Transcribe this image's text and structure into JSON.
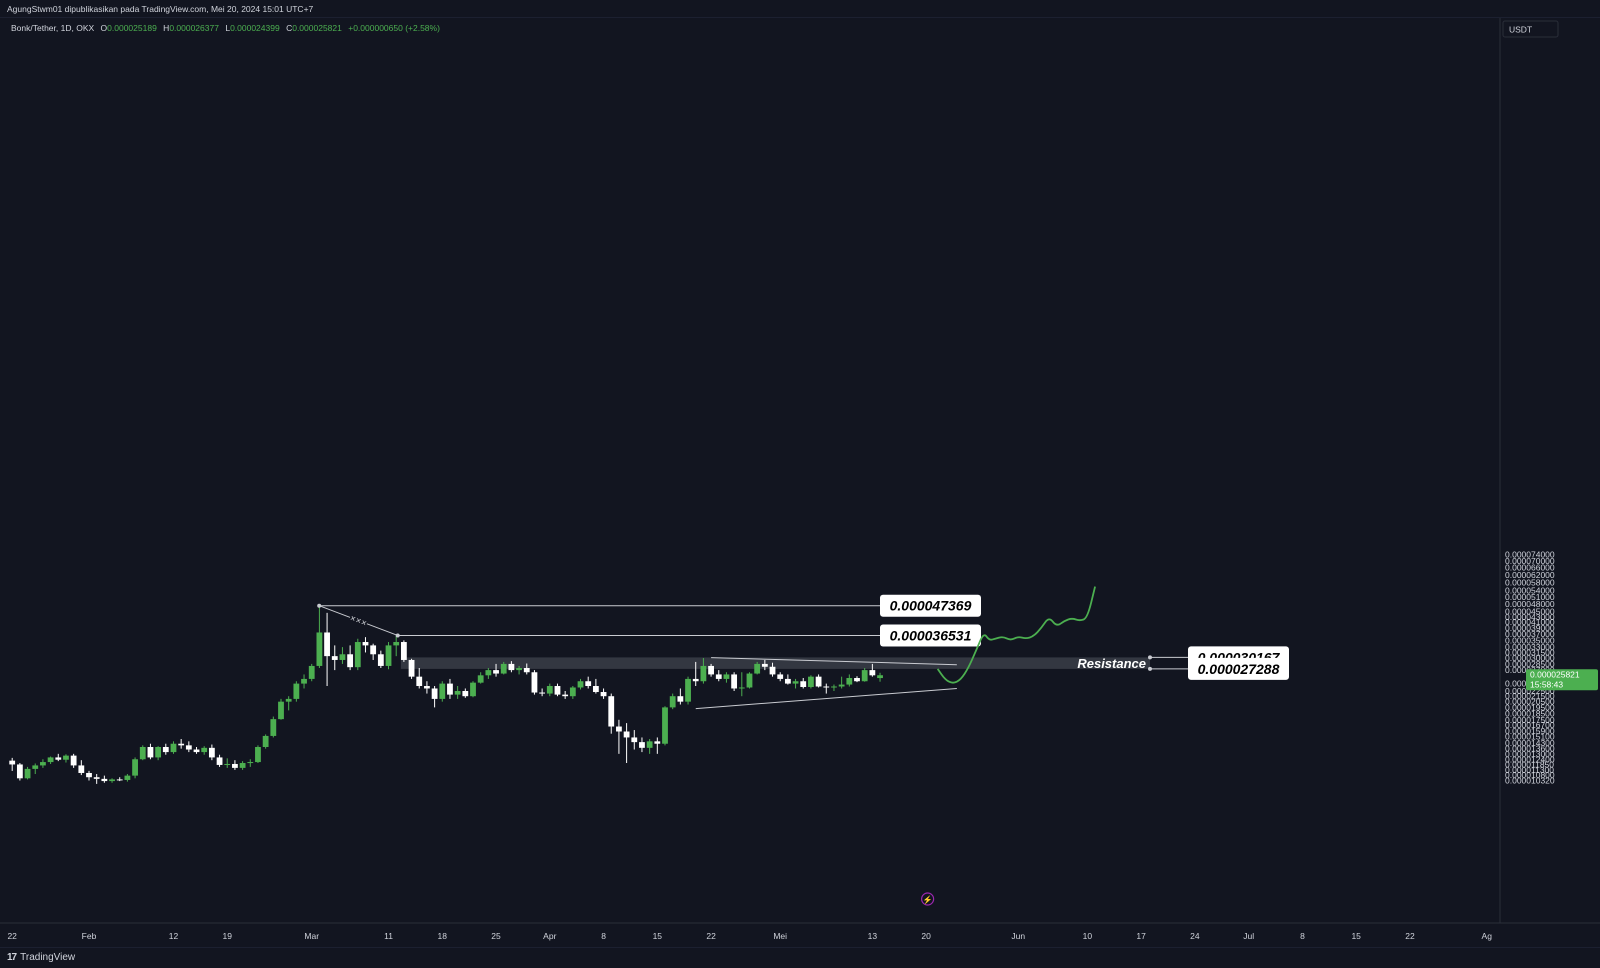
{
  "header": {
    "publisher": "AgungStwm01 dipublikasikan pada TradingView.com, Mei 20, 2024 15:01 UTC+7"
  },
  "legend": {
    "symbol": "Bonk/Tether, 1D, OKX",
    "o_label": "O",
    "o": "0.000025189",
    "h_label": "H",
    "h": "0.000026377",
    "l_label": "L",
    "l": "0.000024399",
    "c_label": "C",
    "c": "0.000025821",
    "change": "+0.000000650 (+2.58%)"
  },
  "price_axis": {
    "currency": "USDT",
    "last_price": "0.000025821",
    "countdown": "15:58:43"
  },
  "footer": {
    "brand": "TradingView"
  },
  "colors": {
    "background": "#121520",
    "up": "#4caf50",
    "down": "#ffffff",
    "zone": "#3a3d48",
    "projection": "#4caf50"
  },
  "annotations": {
    "resistance_label": "Resistance",
    "levels": [
      "0.000047369",
      "0.000036531",
      "0.000030167",
      "0.000027288"
    ]
  },
  "chart_data": {
    "type": "candlestick",
    "scale": "log",
    "ylim": [
      1e-05,
      7.65e-05
    ],
    "y_ticks": [
      "0.000074000",
      "0.000070000",
      "0.000066000",
      "0.000062000",
      "0.000058000",
      "0.000054000",
      "0.000051000",
      "0.000048000",
      "0.000045000",
      "0.000043000",
      "0.000041000",
      "0.000039000",
      "0.000037000",
      "0.000035000",
      "0.000033000",
      "0.000031500",
      "0.000030000",
      "0.000028500",
      "0.000027000",
      "0.000024000",
      "0.000022500",
      "0.000021500",
      "0.000020500",
      "0.000019500",
      "0.000018500",
      "0.000017500",
      "0.000016700",
      "0.000015900",
      "0.000015100",
      "0.000014300",
      "0.000013600",
      "0.000013000",
      "0.000012400",
      "0.000011850",
      "0.000011300",
      "0.000010800",
      "0.000010320"
    ],
    "x_ticks": [
      {
        "label": "22",
        "day": 0
      },
      {
        "label": "Feb",
        "day": 10
      },
      {
        "label": "12",
        "day": 21
      },
      {
        "label": "19",
        "day": 28
      },
      {
        "label": "Mar",
        "day": 39
      },
      {
        "label": "11",
        "day": 49
      },
      {
        "label": "18",
        "day": 56
      },
      {
        "label": "25",
        "day": 63
      },
      {
        "label": "Apr",
        "day": 70
      },
      {
        "label": "8",
        "day": 77
      },
      {
        "label": "15",
        "day": 84
      },
      {
        "label": "22",
        "day": 91
      },
      {
        "label": "Mei",
        "day": 100
      },
      {
        "label": "13",
        "day": 112
      },
      {
        "label": "20",
        "day": 119
      },
      {
        "label": "Jun",
        "day": 131
      },
      {
        "label": "10",
        "day": 140
      },
      {
        "label": "17",
        "day": 147
      },
      {
        "label": "24",
        "day": 154
      },
      {
        "label": "Jul",
        "day": 161
      },
      {
        "label": "8",
        "day": 168
      },
      {
        "label": "15",
        "day": 175
      },
      {
        "label": "22",
        "day": 182
      },
      {
        "label": "Ag",
        "day": 192
      }
    ],
    "start_date": "2024-01-22",
    "candles": [
      [
        1.225e-05,
        1.255e-05,
        1.12e-05,
        1.185e-05
      ],
      [
        1.185e-05,
        1.2e-05,
        1.03e-05,
        1.05e-05
      ],
      [
        1.05e-05,
        1.16e-05,
        1.04e-05,
        1.14e-05
      ],
      [
        1.14e-05,
        1.195e-05,
        1.09e-05,
        1.175e-05
      ],
      [
        1.175e-05,
        1.24e-05,
        1.15e-05,
        1.21e-05
      ],
      [
        1.21e-05,
        1.27e-05,
        1.19e-05,
        1.26e-05
      ],
      [
        1.26e-05,
        1.3e-05,
        1.22e-05,
        1.235e-05
      ],
      [
        1.235e-05,
        1.295e-05,
        1.205e-05,
        1.28e-05
      ],
      [
        1.28e-05,
        1.3e-05,
        1.15e-05,
        1.175e-05
      ],
      [
        1.175e-05,
        1.23e-05,
        1.08e-05,
        1.1e-05
      ],
      [
        1.1e-05,
        1.12e-05,
        1.03e-05,
        1.06e-05
      ],
      [
        1.06e-05,
        1.09e-05,
        1e-05,
        1.045e-05
      ],
      [
        1.045e-05,
        1.075e-05,
        1.01e-05,
        1.025e-05
      ],
      [
        1.025e-05,
        1.05e-05,
        1.01e-05,
        1.04e-05
      ],
      [
        1.04e-05,
        1.06e-05,
        1.025e-05,
        1.035e-05
      ],
      [
        1.035e-05,
        1.09e-05,
        1.02e-05,
        1.075e-05
      ],
      [
        1.075e-05,
        1.26e-05,
        1.05e-05,
        1.24e-05
      ],
      [
        1.24e-05,
        1.4e-05,
        1.23e-05,
        1.38e-05
      ],
      [
        1.38e-05,
        1.42e-05,
        1.24e-05,
        1.26e-05
      ],
      [
        1.26e-05,
        1.39e-05,
        1.23e-05,
        1.38e-05
      ],
      [
        1.38e-05,
        1.42e-05,
        1.29e-05,
        1.32e-05
      ],
      [
        1.32e-05,
        1.45e-05,
        1.3e-05,
        1.42e-05
      ],
      [
        1.42e-05,
        1.48e-05,
        1.36e-05,
        1.4e-05
      ],
      [
        1.4e-05,
        1.45e-05,
        1.32e-05,
        1.35e-05
      ],
      [
        1.35e-05,
        1.38e-05,
        1.3e-05,
        1.32e-05
      ],
      [
        1.32e-05,
        1.39e-05,
        1.29e-05,
        1.37e-05
      ],
      [
        1.37e-05,
        1.41e-05,
        1.23e-05,
        1.26e-05
      ],
      [
        1.26e-05,
        1.29e-05,
        1.16e-05,
        1.18e-05
      ],
      [
        1.18e-05,
        1.25e-05,
        1.15e-05,
        1.19e-05
      ],
      [
        1.19e-05,
        1.23e-05,
        1.13e-05,
        1.15e-05
      ],
      [
        1.15e-05,
        1.22e-05,
        1.13e-05,
        1.2e-05
      ],
      [
        1.2e-05,
        1.24e-05,
        1.16e-05,
        1.21e-05
      ],
      [
        1.21e-05,
        1.4e-05,
        1.2e-05,
        1.38e-05
      ],
      [
        1.38e-05,
        1.54e-05,
        1.36e-05,
        1.52e-05
      ],
      [
        1.52e-05,
        1.8e-05,
        1.5e-05,
        1.76e-05
      ],
      [
        1.76e-05,
        2.1e-05,
        1.75e-05,
        2.05e-05
      ],
      [
        2.05e-05,
        2.15e-05,
        1.9e-05,
        2.1e-05
      ],
      [
        2.1e-05,
        2.45e-05,
        2.05e-05,
        2.4e-05
      ],
      [
        2.4e-05,
        2.6e-05,
        2.3e-05,
        2.5e-05
      ],
      [
        2.5e-05,
        2.85e-05,
        2.45e-05,
        2.8e-05
      ],
      [
        2.8e-05,
        4.736e-05,
        2.75e-05,
        3.75e-05
      ],
      [
        3.75e-05,
        4.45e-05,
        2.35e-05,
        3.05e-05
      ],
      [
        3.05e-05,
        3.35e-05,
        2.7e-05,
        2.95e-05
      ],
      [
        2.95e-05,
        3.3e-05,
        2.85e-05,
        3.1e-05
      ],
      [
        3.1e-05,
        3.35e-05,
        2.7e-05,
        2.77e-05
      ],
      [
        2.77e-05,
        3.55e-05,
        2.7e-05,
        3.45e-05
      ],
      [
        3.45e-05,
        3.6e-05,
        3.15e-05,
        3.35e-05
      ],
      [
        3.35e-05,
        3.4e-05,
        2.95e-05,
        3.1e-05
      ],
      [
        3.1e-05,
        3.2e-05,
        2.75e-05,
        2.8e-05
      ],
      [
        2.8e-05,
        3.45e-05,
        2.72e-05,
        3.35e-05
      ],
      [
        3.35e-05,
        3.653e-05,
        3.05e-05,
        3.45e-05
      ],
      [
        3.45e-05,
        3.5e-05,
        2.9e-05,
        2.95e-05
      ],
      [
        2.95e-05,
        2.98e-05,
        2.5e-05,
        2.55e-05
      ],
      [
        2.55e-05,
        2.75e-05,
        2.3e-05,
        2.35e-05
      ],
      [
        2.35e-05,
        2.45e-05,
        2.2e-05,
        2.3e-05
      ],
      [
        2.3e-05,
        2.35e-05,
        1.95e-05,
        2.1e-05
      ],
      [
        2.1e-05,
        2.45e-05,
        2.05e-05,
        2.4e-05
      ],
      [
        2.4e-05,
        2.5e-05,
        2.1e-05,
        2.18e-05
      ],
      [
        2.18e-05,
        2.35e-05,
        2.1e-05,
        2.25e-05
      ],
      [
        2.25e-05,
        2.3e-05,
        2.12e-05,
        2.15e-05
      ],
      [
        2.15e-05,
        2.45e-05,
        2.13e-05,
        2.42e-05
      ],
      [
        2.42e-05,
        2.65e-05,
        2.4e-05,
        2.58e-05
      ],
      [
        2.58e-05,
        2.75e-05,
        2.5e-05,
        2.7e-05
      ],
      [
        2.7e-05,
        2.85e-05,
        2.55e-05,
        2.62e-05
      ],
      [
        2.62e-05,
        2.9e-05,
        2.6e-05,
        2.85e-05
      ],
      [
        2.85e-05,
        2.92e-05,
        2.65e-05,
        2.7e-05
      ],
      [
        2.7e-05,
        2.8e-05,
        2.6e-05,
        2.75e-05
      ],
      [
        2.75e-05,
        2.86e-05,
        2.6e-05,
        2.65e-05
      ],
      [
        2.65e-05,
        2.7e-05,
        2.18e-05,
        2.22e-05
      ],
      [
        2.22e-05,
        2.3e-05,
        2.15e-05,
        2.2e-05
      ],
      [
        2.2e-05,
        2.4e-05,
        2.15e-05,
        2.35e-05
      ],
      [
        2.35e-05,
        2.4e-05,
        2.15e-05,
        2.18e-05
      ],
      [
        2.18e-05,
        2.25e-05,
        2.1e-05,
        2.15e-05
      ],
      [
        2.15e-05,
        2.35e-05,
        2.1e-05,
        2.32e-05
      ],
      [
        2.32e-05,
        2.5e-05,
        2.28e-05,
        2.45e-05
      ],
      [
        2.45e-05,
        2.55e-05,
        2.3e-05,
        2.35e-05
      ],
      [
        2.35e-05,
        2.5e-05,
        2.2e-05,
        2.23e-05
      ],
      [
        2.23e-05,
        2.3e-05,
        2.1e-05,
        2.15e-05
      ],
      [
        2.15e-05,
        2.2e-05,
        1.55e-05,
        1.65e-05
      ],
      [
        1.65e-05,
        1.75e-05,
        1.3e-05,
        1.58e-05
      ],
      [
        1.58e-05,
        1.7e-05,
        1.2e-05,
        1.5e-05
      ],
      [
        1.5e-05,
        1.6e-05,
        1.35e-05,
        1.44e-05
      ],
      [
        1.44e-05,
        1.5e-05,
        1.32e-05,
        1.37e-05
      ],
      [
        1.37e-05,
        1.48e-05,
        1.3e-05,
        1.45e-05
      ],
      [
        1.45e-05,
        1.5e-05,
        1.3e-05,
        1.42e-05
      ],
      [
        1.42e-05,
        1.97e-05,
        1.4e-05,
        1.95e-05
      ],
      [
        1.95e-05,
        2.2e-05,
        1.92e-05,
        2.15e-05
      ],
      [
        2.15e-05,
        2.3e-05,
        2e-05,
        2.05e-05
      ],
      [
        2.05e-05,
        2.55e-05,
        2e-05,
        2.5e-05
      ],
      [
        2.5e-05,
        2.9e-05,
        2.35e-05,
        2.45e-05
      ],
      [
        2.45e-05,
        3e-05,
        2.4e-05,
        2.8e-05
      ],
      [
        2.8e-05,
        2.85e-05,
        2.55e-05,
        2.6e-05
      ],
      [
        2.6e-05,
        2.7e-05,
        2.45e-05,
        2.5e-05
      ],
      [
        2.5e-05,
        2.65e-05,
        2.42e-05,
        2.6e-05
      ],
      [
        2.6e-05,
        2.65e-05,
        2.25e-05,
        2.3e-05
      ],
      [
        2.3e-05,
        2.65e-05,
        2.15e-05,
        2.32e-05
      ],
      [
        2.32e-05,
        2.65e-05,
        2.3e-05,
        2.62e-05
      ],
      [
        2.62e-05,
        2.9e-05,
        2.6e-05,
        2.85e-05
      ],
      [
        2.85e-05,
        2.95e-05,
        2.7e-05,
        2.78e-05
      ],
      [
        2.78e-05,
        2.88e-05,
        2.55e-05,
        2.6e-05
      ],
      [
        2.6e-05,
        2.65e-05,
        2.45e-05,
        2.5e-05
      ],
      [
        2.5e-05,
        2.6e-05,
        2.38e-05,
        2.4e-05
      ],
      [
        2.4e-05,
        2.5e-05,
        2.3e-05,
        2.45e-05
      ],
      [
        2.45e-05,
        2.52e-05,
        2.3e-05,
        2.33e-05
      ],
      [
        2.33e-05,
        2.58e-05,
        2.3e-05,
        2.55e-05
      ],
      [
        2.55e-05,
        2.6e-05,
        2.32e-05,
        2.34e-05
      ],
      [
        2.34e-05,
        2.4e-05,
        2.2e-05,
        2.32e-05
      ],
      [
        2.32e-05,
        2.38e-05,
        2.25e-05,
        2.34e-05
      ],
      [
        2.34e-05,
        2.55e-05,
        2.3e-05,
        2.38e-05
      ],
      [
        2.38e-05,
        2.6e-05,
        2.34e-05,
        2.52e-05
      ],
      [
        2.52e-05,
        2.56e-05,
        2.43e-05,
        2.45e-05
      ],
      [
        2.45e-05,
        2.75e-05,
        2.44e-05,
        2.7e-05
      ],
      [
        2.7e-05,
        2.85e-05,
        2.55e-05,
        2.58e-05
      ],
      [
        2.519e-05,
        2.638e-05,
        2.44e-05,
        2.582e-05
      ]
    ],
    "resistance_zone": [
      2.7288e-05,
      3.0167e-05
    ],
    "trendlines": [
      {
        "name": "descending",
        "from": [
          91,
          3.01e-05
        ],
        "to": [
          123,
          2.83e-05
        ]
      },
      {
        "name": "ascending",
        "from": [
          89,
          1.93e-05
        ],
        "to": [
          123,
          2.3e-05
        ]
      }
    ],
    "projection": [
      [
        120.5,
        2.73e-05
      ],
      [
        121.5,
        2.48e-05
      ],
      [
        122.5,
        2.4e-05
      ],
      [
        123.5,
        2.48e-05
      ],
      [
        124.5,
        2.75e-05
      ],
      [
        125.5,
        3.2e-05
      ],
      [
        126.5,
        3.75e-05
      ],
      [
        127.2,
        3.5e-05
      ],
      [
        128,
        3.55e-05
      ],
      [
        129,
        3.62e-05
      ],
      [
        130,
        3.5e-05
      ],
      [
        131,
        3.62e-05
      ],
      [
        132,
        3.55e-05
      ],
      [
        133,
        3.63e-05
      ],
      [
        134,
        3.9e-05
      ],
      [
        135,
        4.3e-05
      ],
      [
        136,
        3.95e-05
      ],
      [
        137,
        4.15e-05
      ],
      [
        138,
        4.25e-05
      ],
      [
        139,
        4.15e-05
      ],
      [
        140,
        4.25e-05
      ],
      [
        141,
        5.6e-05
      ]
    ]
  }
}
